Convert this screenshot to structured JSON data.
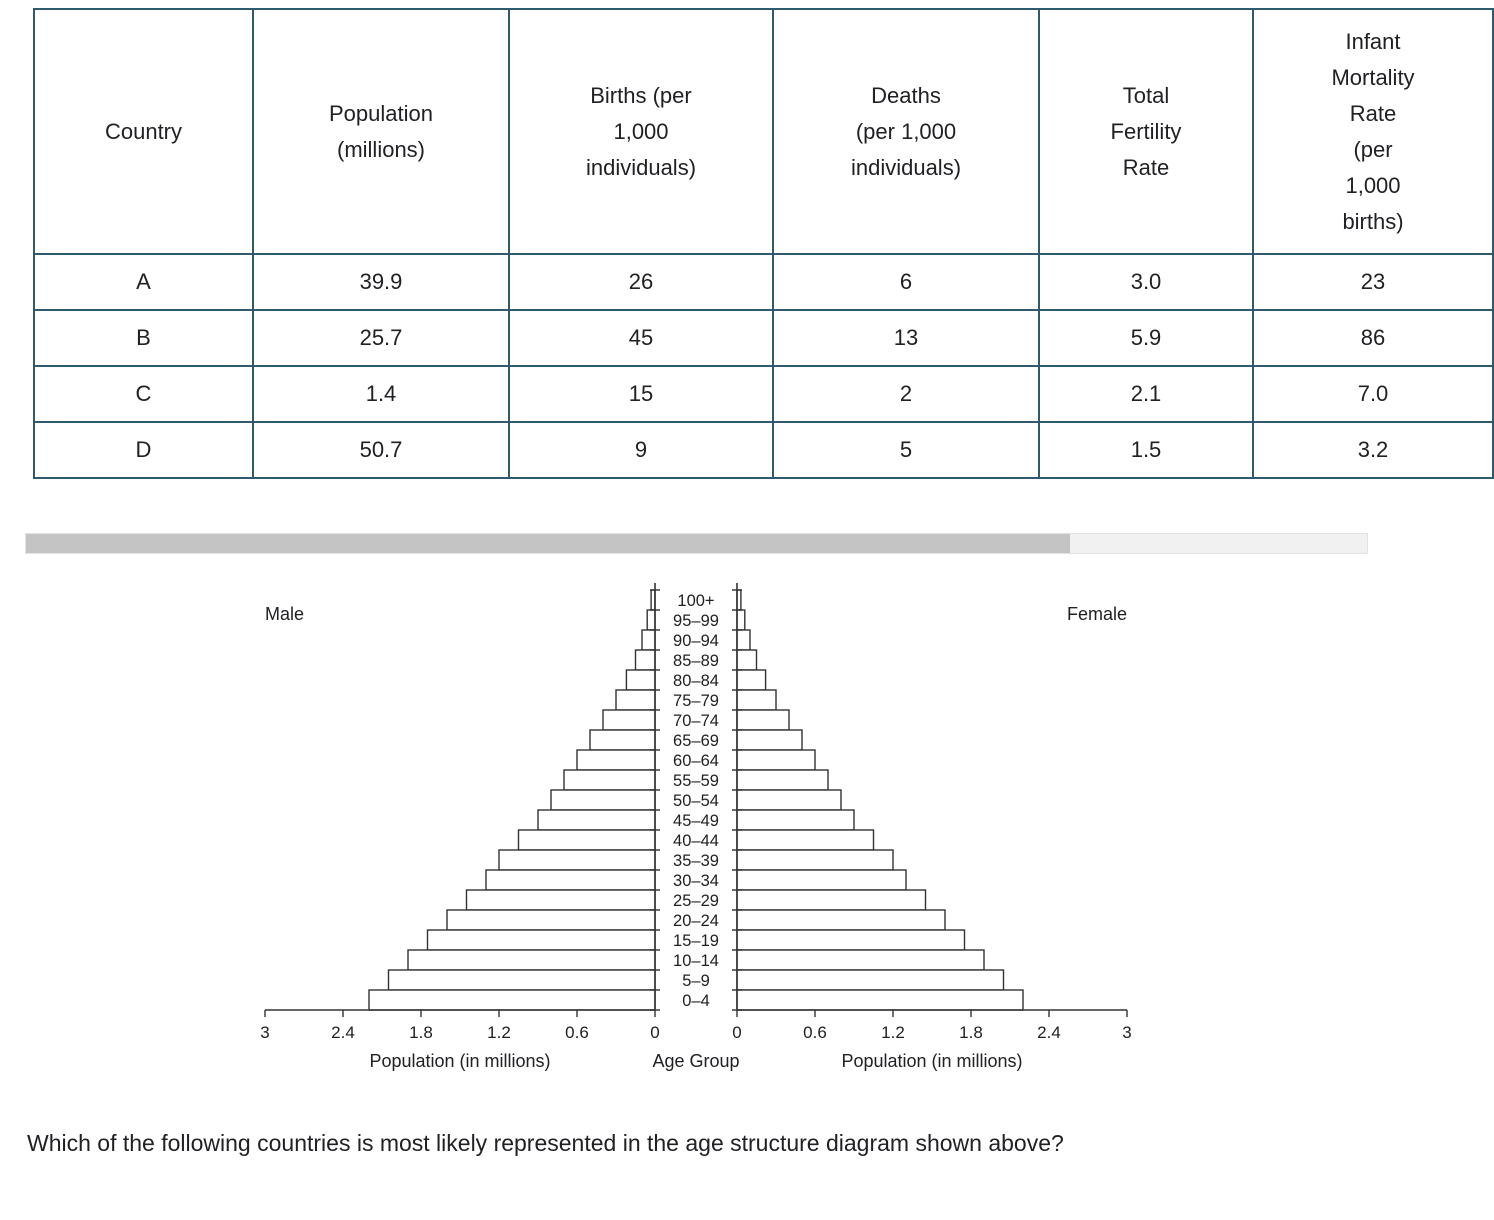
{
  "table": {
    "columns": [
      {
        "lines": [
          "Country"
        ]
      },
      {
        "lines": [
          "Population",
          "(millions)"
        ]
      },
      {
        "lines": [
          "Births (per",
          "1,000",
          "individuals)"
        ]
      },
      {
        "lines": [
          "Deaths",
          "(per 1,000",
          "individuals)"
        ]
      },
      {
        "lines": [
          "Total",
          "Fertility",
          "Rate"
        ]
      },
      {
        "lines": [
          "Infant",
          "Mortality",
          "Rate",
          "(per",
          "1,000",
          "births)"
        ]
      }
    ],
    "rows": [
      [
        "A",
        "39.9",
        "26",
        "6",
        "3.0",
        "23"
      ],
      [
        "B",
        "25.7",
        "45",
        "13",
        "5.9",
        "86"
      ],
      [
        "C",
        "1.4",
        "15",
        "2",
        "2.1",
        "7.0"
      ],
      [
        "D",
        "50.7",
        "9",
        "5",
        "1.5",
        "3.2"
      ]
    ]
  },
  "chart_data": {
    "type": "bar",
    "subtype": "population-pyramid",
    "left_label": "Male",
    "right_label": "Female",
    "center_axis_label": "Age Group",
    "left_axis_label": "Population (in millions)",
    "right_axis_label": "Population (in millions)",
    "xlim": [
      0,
      3
    ],
    "x_ticks_left": [
      "3",
      "2.4",
      "1.8",
      "1.2",
      "0.6",
      "0"
    ],
    "x_ticks_right": [
      "0",
      "0.6",
      "1.2",
      "1.8",
      "2.4",
      "3"
    ],
    "age_groups_top_to_bottom": [
      "100+",
      "95–99",
      "90–94",
      "85–89",
      "80–84",
      "75–79",
      "70–74",
      "65–69",
      "60–64",
      "55–59",
      "50–54",
      "45–49",
      "40–44",
      "35–39",
      "30–34",
      "25–29",
      "20–24",
      "15–19",
      "10–14",
      "5–9",
      "0–4"
    ],
    "series": [
      {
        "name": "Male",
        "values_top_to_bottom": [
          0.03,
          0.06,
          0.1,
          0.15,
          0.22,
          0.3,
          0.4,
          0.5,
          0.6,
          0.7,
          0.8,
          0.9,
          1.05,
          1.2,
          1.3,
          1.45,
          1.6,
          1.75,
          1.9,
          2.05,
          2.2
        ]
      },
      {
        "name": "Female",
        "values_top_to_bottom": [
          0.03,
          0.06,
          0.1,
          0.15,
          0.22,
          0.3,
          0.4,
          0.5,
          0.6,
          0.7,
          0.8,
          0.9,
          1.05,
          1.2,
          1.3,
          1.45,
          1.6,
          1.75,
          1.9,
          2.05,
          2.2
        ]
      }
    ]
  },
  "question": {
    "text": "Which of the following countries is most likely represented in the age structure diagram shown above?"
  },
  "colors": {
    "table_border": "#2f5a6c",
    "chart_stroke": "#333333",
    "text": "#202124",
    "scroll_thumb": "#c4c4c4",
    "scroll_track": "#f1f1f1"
  }
}
